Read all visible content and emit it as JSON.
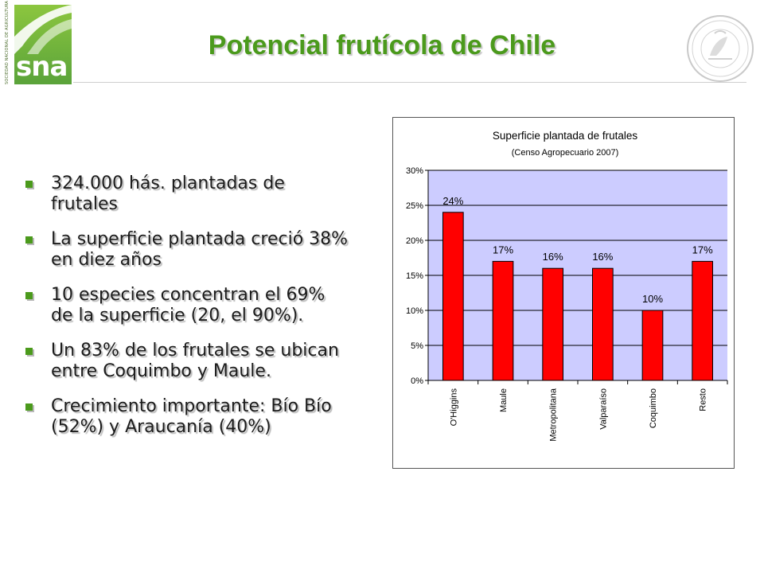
{
  "header": {
    "title": "Potencial frutícola de Chile",
    "logo_text": "sna",
    "logo_vertical_text": "SOCIEDAD NACIONAL DE AGRICULTURA",
    "seal_icon": "institutional-seal-icon",
    "title_color": "#4b9a1c"
  },
  "bullets": [
    "324.000 hás. plantadas de frutales",
    "La superficie plantada creció 38% en diez años",
    "10 especies concentran el 69% de la superficie (20, el 90%).",
    "Un 83% de los frutales se ubican entre Coquimbo y Maule.",
    "Crecimiento importante: Bío Bío (52%) y Araucanía (40%)"
  ],
  "chart_data": {
    "type": "bar",
    "title": "Superficie plantada de frutales",
    "subtitle": "(Censo Agropecuario 2007)",
    "categories": [
      "O'Higgins",
      "Maule",
      "Metropolitana",
      "Valparaíso",
      "Coquimbo",
      "Resto"
    ],
    "values": [
      24,
      17,
      16,
      16,
      10,
      17
    ],
    "data_labels": [
      "24%",
      "17%",
      "16%",
      "16%",
      "10%",
      "17%"
    ],
    "y_ticks": [
      "0%",
      "5%",
      "10%",
      "15%",
      "20%",
      "25%",
      "30%"
    ],
    "ylim": [
      0,
      30
    ],
    "grid": true,
    "bar_color": "#ff0000",
    "plot_background": "#ccccff",
    "xlabel": "",
    "ylabel": ""
  }
}
